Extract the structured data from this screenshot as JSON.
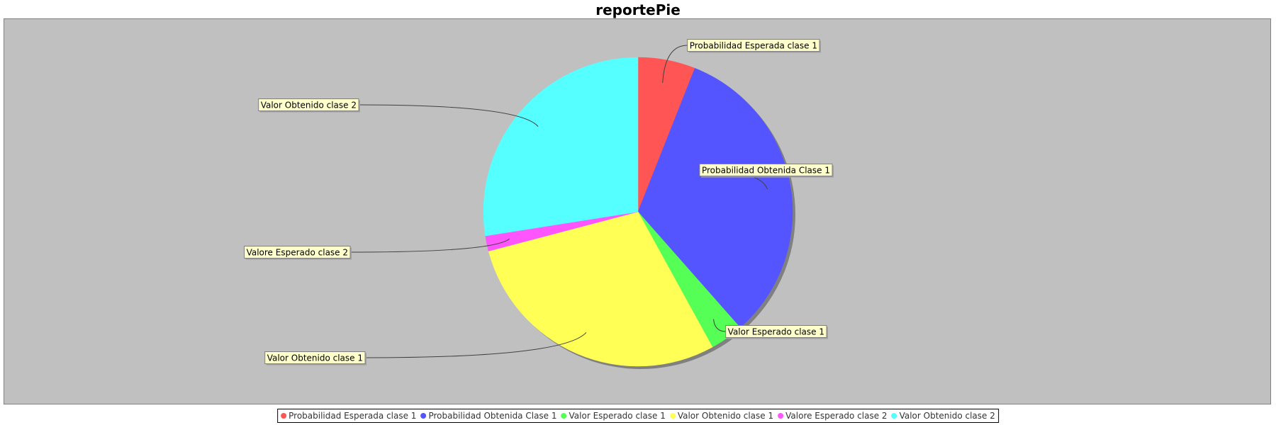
{
  "chart_data": {
    "type": "pie",
    "title": "reportePie",
    "start_angle_deg": 90,
    "direction": "clockwise",
    "series": [
      {
        "name": "Probabilidad Esperada clase 1",
        "value": 6.0,
        "color": "#ff5555"
      },
      {
        "name": "Probabilidad Obtenida Clase 1",
        "value": 32.5,
        "color": "#5555ff"
      },
      {
        "name": "Valor Esperado clase 1",
        "value": 3.5,
        "color": "#55ff55"
      },
      {
        "name": "Valor Obtenido clase 1",
        "value": 28.9,
        "color": "#ffff55"
      },
      {
        "name": "Valore Esperado clase 2",
        "value": 1.6,
        "color": "#ff55ff"
      },
      {
        "name": "Valor Obtenido clase 2",
        "value": 27.5,
        "color": "#55ffff"
      }
    ],
    "legend_position": "bottom",
    "background_color": "#c0c0c0",
    "label_background": "#ffffcc"
  }
}
